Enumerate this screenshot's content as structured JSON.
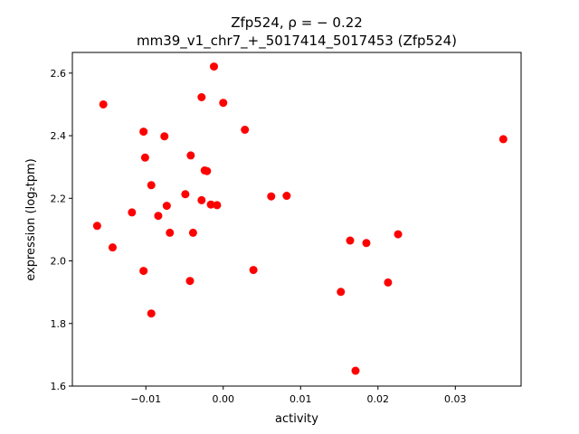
{
  "chart_data": {
    "type": "scatter",
    "title_line1": "Zfp524, ρ = − 0.22",
    "title_line2": "mm39_v1_chr7_+_5017414_5017453 (Zfp524)",
    "xlabel": "activity",
    "ylabel": "expression (log₂tpm)",
    "xlim": [
      -0.0195,
      0.0385
    ],
    "ylim": [
      1.6,
      2.666
    ],
    "xticks": [
      -0.01,
      0.0,
      0.01,
      0.02,
      0.03
    ],
    "xtick_labels": [
      "−0.01",
      "0.00",
      "0.01",
      "0.02",
      "0.03"
    ],
    "yticks": [
      1.6,
      1.8,
      2.0,
      2.2,
      2.4,
      2.6
    ],
    "ytick_labels": [
      "1.6",
      "1.8",
      "2.0",
      "2.2",
      "2.4",
      "2.6"
    ],
    "point_color": "#ff0000",
    "points": [
      {
        "x": -0.0163,
        "y": 2.112
      },
      {
        "x": -0.0155,
        "y": 2.5
      },
      {
        "x": -0.0143,
        "y": 2.043
      },
      {
        "x": -0.0118,
        "y": 2.155
      },
      {
        "x": -0.0103,
        "y": 2.413
      },
      {
        "x": -0.0101,
        "y": 2.33
      },
      {
        "x": -0.0103,
        "y": 1.968
      },
      {
        "x": -0.0093,
        "y": 2.242
      },
      {
        "x": -0.0093,
        "y": 1.832
      },
      {
        "x": -0.0084,
        "y": 2.144
      },
      {
        "x": -0.0076,
        "y": 2.398
      },
      {
        "x": -0.0073,
        "y": 2.176
      },
      {
        "x": -0.0069,
        "y": 2.09
      },
      {
        "x": -0.0049,
        "y": 2.213
      },
      {
        "x": -0.0042,
        "y": 2.337
      },
      {
        "x": -0.0043,
        "y": 1.936
      },
      {
        "x": -0.0039,
        "y": 2.09
      },
      {
        "x": -0.0028,
        "y": 2.523
      },
      {
        "x": -0.0028,
        "y": 2.194
      },
      {
        "x": -0.0024,
        "y": 2.289
      },
      {
        "x": -0.0021,
        "y": 2.287
      },
      {
        "x": -0.0016,
        "y": 2.18
      },
      {
        "x": -0.0012,
        "y": 2.621
      },
      {
        "x": -0.0008,
        "y": 2.178
      },
      {
        "x": 0.0,
        "y": 2.505
      },
      {
        "x": 0.0028,
        "y": 2.419
      },
      {
        "x": 0.0039,
        "y": 1.971
      },
      {
        "x": 0.0062,
        "y": 2.206
      },
      {
        "x": 0.0082,
        "y": 2.208
      },
      {
        "x": 0.0152,
        "y": 1.901
      },
      {
        "x": 0.0164,
        "y": 2.065
      },
      {
        "x": 0.0171,
        "y": 1.649
      },
      {
        "x": 0.0185,
        "y": 2.057
      },
      {
        "x": 0.0213,
        "y": 1.931
      },
      {
        "x": 0.0226,
        "y": 2.085
      },
      {
        "x": 0.0362,
        "y": 2.389
      }
    ]
  }
}
